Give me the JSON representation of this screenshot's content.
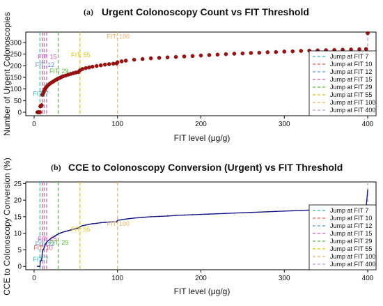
{
  "colors": {
    "FIT 7": "#2ab7b0",
    "FIT 10": "#e8584a",
    "FIT 12": "#5b8ee0",
    "FIT 15": "#e050b8",
    "FIT 29": "#55c236",
    "FIT 55": "#e8c000",
    "FIT 100": "#f0b060",
    "FIT 400": "#c89ad8",
    "panel_a_series": "#a01010",
    "panel_b_series": "#13178a"
  },
  "chart_data": [
    {
      "tag": "(a)",
      "title": "Urgent Colonoscopy Count vs FIT Threshold",
      "type": "scatter",
      "xlabel": "FIT level (μg/g)",
      "ylabel": "Number of Urgent Colonoscopies",
      "xlim": [
        -10,
        410
      ],
      "ylim": [
        -15,
        345
      ],
      "xticks": [
        0,
        100,
        200,
        300,
        400
      ],
      "yticks": [
        0,
        50,
        100,
        150,
        200,
        250,
        300
      ],
      "x": [
        4,
        5,
        6,
        7,
        7.5,
        8,
        9,
        10,
        11,
        12,
        13,
        14,
        15,
        17,
        19,
        21,
        23,
        25,
        27,
        29,
        31,
        33,
        35,
        38,
        41,
        44,
        47,
        50,
        53,
        55,
        58,
        62,
        66,
        70,
        75,
        80,
        85,
        90,
        95,
        99,
        100,
        105,
        110,
        120,
        130,
        140,
        150,
        160,
        170,
        180,
        190,
        200,
        210,
        220,
        230,
        240,
        250,
        260,
        270,
        280,
        290,
        300,
        310,
        320,
        330,
        340,
        350,
        360,
        370,
        380,
        390,
        398,
        400
      ],
      "values": [
        0,
        0,
        0,
        0,
        25,
        28,
        30,
        75,
        83,
        90,
        100,
        105,
        110,
        117,
        123,
        128,
        132,
        137,
        141,
        145,
        148,
        152,
        155,
        158,
        162,
        165,
        168,
        171,
        173,
        180,
        186,
        190,
        193,
        196,
        199,
        202,
        205,
        207,
        209,
        210,
        215,
        219,
        222,
        226,
        229,
        232,
        234,
        236,
        238,
        240,
        242,
        244,
        246,
        248,
        250,
        252,
        253,
        255,
        256,
        258,
        259,
        261,
        262,
        264,
        265,
        266,
        267,
        268,
        269,
        270,
        271,
        272,
        340
      ],
      "grid": false,
      "legend_placement": "bottom-right",
      "thresholds": [
        {
          "x": 7,
          "legend": "Jump at FIT 7",
          "label": "FIT: 7",
          "label_y": 70
        },
        {
          "x": 10,
          "legend": "Jump at FIT 10",
          "label": "",
          "label_y": 0
        },
        {
          "x": 12,
          "legend": "Jump at FIT 12",
          "label": "FIT: 12",
          "label_y": 195
        },
        {
          "x": 15,
          "legend": "Jump at FIT 15",
          "label": "FIT: 15",
          "label_y": 230
        },
        {
          "x": 29,
          "legend": "Jump at FIT 29",
          "label": "FIT: 29",
          "label_y": 168
        },
        {
          "x": 55,
          "legend": "Jump at FIT 55",
          "label": "FIT: 55",
          "label_y": 237
        },
        {
          "x": 100,
          "legend": "Jump at FIT 100",
          "label": "FIT: 100",
          "label_y": 317
        },
        {
          "x": 400,
          "legend": "Jump at FIT 400",
          "label": "",
          "label_y": 0
        }
      ]
    },
    {
      "tag": "(b)",
      "title": "CCE to Colonoscopy Conversion (Urgent) vs FIT Threshold",
      "type": "line",
      "xlabel": "FIT level (μg/g)",
      "ylabel": "CCE to Colonoscopy Conversion (%)",
      "xlim": [
        -10,
        410
      ],
      "ylim": [
        -1,
        25.5
      ],
      "xticks": [
        0,
        100,
        200,
        300,
        400
      ],
      "yticks": [
        0,
        5,
        10,
        15,
        20,
        25
      ],
      "x": [
        4,
        5,
        6,
        7,
        7.5,
        8,
        9,
        10,
        11,
        12,
        13,
        14,
        15,
        17,
        19,
        21,
        23,
        25,
        27,
        29,
        31,
        33,
        35,
        38,
        41,
        44,
        47,
        50,
        53,
        55,
        58,
        62,
        66,
        70,
        75,
        80,
        85,
        90,
        95,
        99,
        100,
        105,
        110,
        120,
        130,
        140,
        150,
        160,
        170,
        180,
        190,
        200,
        210,
        220,
        230,
        240,
        250,
        260,
        270,
        280,
        290,
        300,
        310,
        320,
        330,
        340,
        350,
        360,
        370,
        380,
        390,
        398,
        400
      ],
      "values": [
        0,
        0,
        0,
        0,
        1.5,
        1.7,
        1.9,
        4.5,
        5.1,
        5.6,
        6.3,
        6.8,
        7.3,
        7.8,
        8.2,
        8.6,
        8.9,
        9.2,
        9.5,
        9.8,
        10.0,
        10.2,
        10.4,
        10.6,
        10.8,
        11.0,
        11.2,
        11.4,
        11.6,
        12.0,
        12.3,
        12.5,
        12.7,
        12.9,
        13.0,
        13.2,
        13.3,
        13.4,
        13.5,
        13.5,
        13.9,
        14.1,
        14.3,
        14.6,
        14.8,
        15.0,
        15.1,
        15.2,
        15.4,
        15.5,
        15.6,
        15.7,
        15.8,
        15.9,
        16.0,
        16.1,
        16.2,
        16.3,
        16.4,
        16.5,
        16.6,
        16.7,
        16.8,
        16.9,
        17.0,
        17.1,
        17.2,
        17.2,
        17.3,
        17.4,
        17.5,
        17.5,
        23.0
      ],
      "grid": false,
      "legend_placement": "bottom-right",
      "thresholds": [
        {
          "x": 7,
          "legend": "Jump at FIT 7",
          "label": "FIT: 7",
          "label_y": 1.5
        },
        {
          "x": 10,
          "legend": "Jump at FIT 10",
          "label": "FIT: 10",
          "label_y": 5
        },
        {
          "x": 12,
          "legend": "Jump at FIT 12",
          "label": "FIT: 12",
          "label_y": 6.2
        },
        {
          "x": 15,
          "legend": "Jump at FIT 15",
          "label": "FIT: 15",
          "label_y": 7.6
        },
        {
          "x": 29,
          "legend": "Jump at FIT 29",
          "label": "FIT: 29",
          "label_y": 6.6
        },
        {
          "x": 55,
          "legend": "Jump at FIT 55",
          "label": "FIT: 55",
          "label_y": 10.6
        },
        {
          "x": 100,
          "legend": "Jump at FIT 100",
          "label": "FIT: 100",
          "label_y": 12.2
        },
        {
          "x": 400,
          "legend": "Jump at FIT 400",
          "label": "",
          "label_y": 0
        }
      ]
    }
  ]
}
